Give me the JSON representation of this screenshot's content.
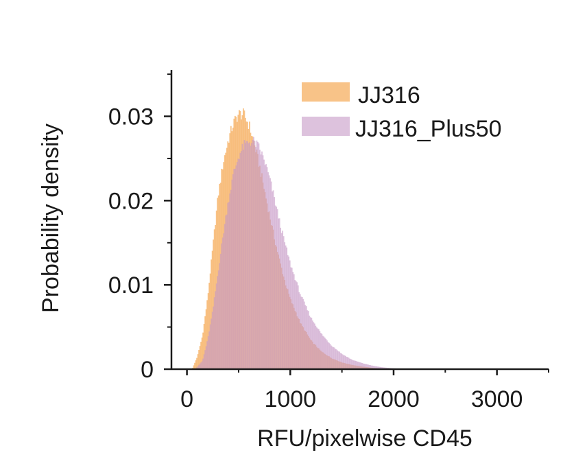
{
  "chart_data": {
    "type": "histogram",
    "xlabel": "RFU/pixelwise CD45",
    "ylabel": "Probability density",
    "xlim": [
      -150,
      3500
    ],
    "ylim": [
      0,
      0.0355
    ],
    "x_ticks": [
      0,
      1000,
      2000,
      3000
    ],
    "x_tick_labels": [
      "0",
      "1000",
      "2000",
      "3000"
    ],
    "y_ticks": [
      0,
      0.01,
      0.02,
      0.03
    ],
    "y_tick_labels": [
      "0",
      "0.01",
      "0.02",
      "0.03"
    ],
    "legend_position": "top-right",
    "bin_width": 10,
    "series": [
      {
        "name": "JJ316",
        "color": "#f5a955",
        "opacity": 0.7,
        "peak_x": 520,
        "peak_y": 0.0305,
        "density_points": [
          [
            50,
            0
          ],
          [
            100,
            0.0015
          ],
          [
            150,
            0.004
          ],
          [
            200,
            0.0085
          ],
          [
            250,
            0.0145
          ],
          [
            300,
            0.0205
          ],
          [
            350,
            0.0245
          ],
          [
            400,
            0.0272
          ],
          [
            450,
            0.0292
          ],
          [
            500,
            0.0303
          ],
          [
            550,
            0.0302
          ],
          [
            600,
            0.029
          ],
          [
            650,
            0.0268
          ],
          [
            700,
            0.0242
          ],
          [
            750,
            0.0212
          ],
          [
            800,
            0.0182
          ],
          [
            850,
            0.0153
          ],
          [
            900,
            0.0127
          ],
          [
            950,
            0.0103
          ],
          [
            1000,
            0.0083
          ],
          [
            1100,
            0.0054
          ],
          [
            1200,
            0.0034
          ],
          [
            1300,
            0.0021
          ],
          [
            1400,
            0.0013
          ],
          [
            1500,
            0.0008
          ],
          [
            1600,
            0.0005
          ],
          [
            1700,
            0.0003
          ],
          [
            1800,
            0.00015
          ],
          [
            1900,
            7e-05
          ],
          [
            2000,
            3e-05
          ],
          [
            2100,
            0
          ]
        ]
      },
      {
        "name": "JJ316_Plus50",
        "color": "#c79ac7",
        "opacity": 0.6,
        "peak_x": 640,
        "peak_y": 0.0272,
        "density_points": [
          [
            80,
            0
          ],
          [
            150,
            0.001
          ],
          [
            200,
            0.0035
          ],
          [
            250,
            0.007
          ],
          [
            300,
            0.0115
          ],
          [
            350,
            0.016
          ],
          [
            400,
            0.02
          ],
          [
            450,
            0.0232
          ],
          [
            500,
            0.0253
          ],
          [
            550,
            0.0265
          ],
          [
            600,
            0.027
          ],
          [
            650,
            0.027
          ],
          [
            700,
            0.0262
          ],
          [
            750,
            0.0247
          ],
          [
            800,
            0.0226
          ],
          [
            850,
            0.02
          ],
          [
            900,
            0.0173
          ],
          [
            950,
            0.0148
          ],
          [
            1000,
            0.0125
          ],
          [
            1100,
            0.0088
          ],
          [
            1200,
            0.0061
          ],
          [
            1300,
            0.0042
          ],
          [
            1400,
            0.0028
          ],
          [
            1500,
            0.0018
          ],
          [
            1600,
            0.0011
          ],
          [
            1700,
            0.0007
          ],
          [
            1800,
            0.0004
          ],
          [
            1900,
            0.0002
          ],
          [
            2000,
            0.0001
          ],
          [
            2100,
            4e-05
          ],
          [
            2200,
            0
          ]
        ]
      }
    ]
  }
}
